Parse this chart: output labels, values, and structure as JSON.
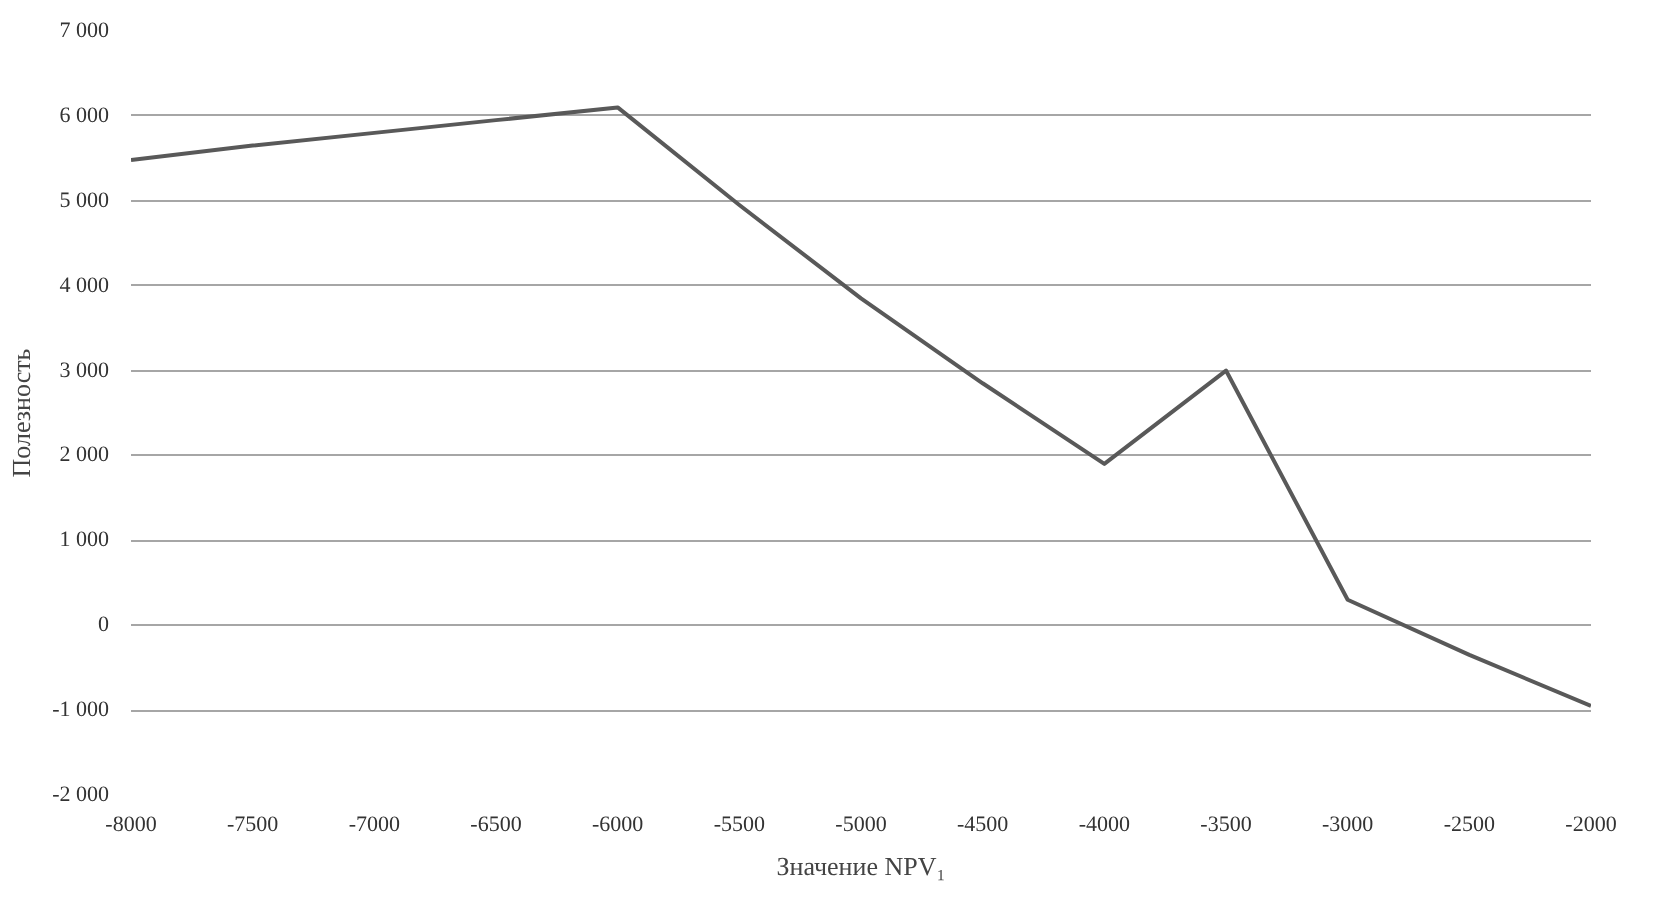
{
  "chart_data": {
    "type": "line",
    "xlabel": "Значение NPV₁",
    "ylabel": "Полезность",
    "x": [
      -8000,
      -7500,
      -7000,
      -6500,
      -6000,
      -5500,
      -5000,
      -4500,
      -4000,
      -3500,
      -3000,
      -2500,
      -2000
    ],
    "series": [
      {
        "color": "#595959",
        "values": [
          5480,
          5650,
          5800,
          5950,
          6100,
          4950,
          3850,
          2850,
          1900,
          3000,
          300,
          -350,
          -950
        ]
      }
    ],
    "xlim": [
      -8000,
      -2000
    ],
    "xticks": [
      -8000,
      -7500,
      -7000,
      -6500,
      -6000,
      -5500,
      -5000,
      -4500,
      -4000,
      -3500,
      -3000,
      -2500,
      -2000
    ],
    "ylim": [
      -2000,
      7000
    ],
    "yticks": [
      {
        "value": -2000,
        "label": "-2 000"
      },
      {
        "value": -1000,
        "label": "-1 000"
      },
      0,
      {
        "value": 1000,
        "label": "1 000"
      },
      {
        "value": 2000,
        "label": "2 000"
      },
      {
        "value": 3000,
        "label": "3 000"
      },
      {
        "value": 4000,
        "label": "4 000"
      },
      {
        "value": 5000,
        "label": "5 000"
      },
      {
        "value": 6000,
        "label": "6 000"
      },
      {
        "value": 7000,
        "label": "7 000"
      }
    ],
    "grid": "y",
    "marker": "none",
    "line_style": "solid"
  }
}
